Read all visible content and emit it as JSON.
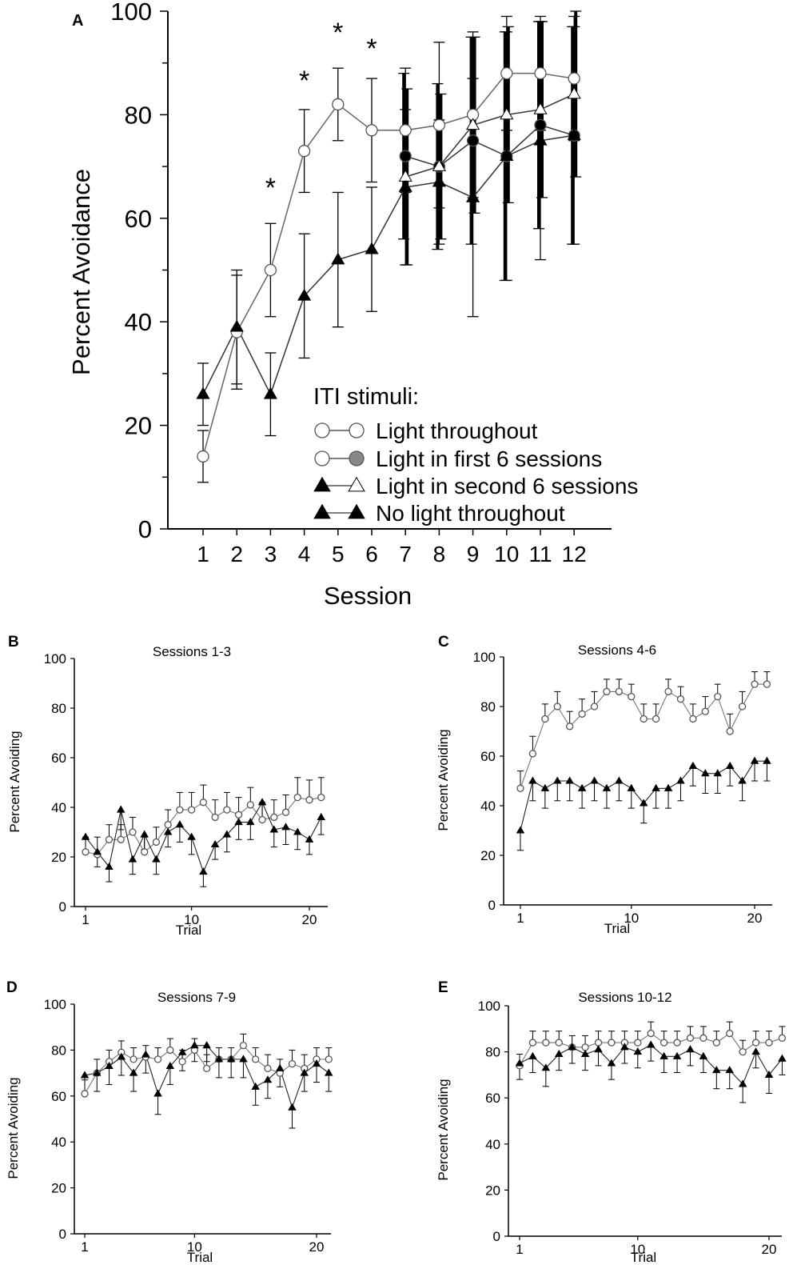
{
  "chart_data": [
    {
      "panel": "A",
      "type": "line",
      "title": "",
      "xlabel": "Session",
      "ylabel": "Percent Avoidance",
      "xlim": [
        0,
        13
      ],
      "ylim": [
        0,
        100
      ],
      "xticks": [
        "1",
        "2",
        "3",
        "4",
        "5",
        "6",
        "7",
        "8",
        "9",
        "10",
        "11",
        "12"
      ],
      "yticks": [
        "0",
        "20",
        "40",
        "60",
        "80",
        "100"
      ],
      "legend_title": "ITI stimuli:",
      "legend_position": "bottom-right",
      "significance_sessions": [
        3,
        4,
        5,
        6
      ],
      "significance_marker": "*",
      "series": [
        {
          "name": "Light throughout",
          "marker": "open-circle",
          "marker_late": "open-circle",
          "x": [
            1,
            2,
            3,
            4,
            5,
            6,
            7,
            8,
            9,
            10,
            11,
            12
          ],
          "values": [
            14,
            38,
            50,
            73,
            82,
            77,
            77,
            78,
            80,
            88,
            88,
            87
          ],
          "error": [
            5,
            11,
            9,
            8,
            7,
            10,
            12,
            16,
            16,
            11,
            11,
            12
          ]
        },
        {
          "name": "Light in first 6 sessions",
          "marker": "open-circle",
          "marker_late": "filled-circle",
          "x": [
            7,
            8,
            9,
            10,
            11,
            12
          ],
          "values": [
            72,
            70,
            75,
            72,
            78,
            76
          ],
          "error": [
            16,
            16,
            20,
            24,
            20,
            21
          ]
        },
        {
          "name": "Light in second 6 sessions",
          "marker": "filled-triangle",
          "marker_late": "open-triangle",
          "x": [
            7,
            8,
            9,
            10,
            11,
            12
          ],
          "values": [
            68,
            70,
            78,
            80,
            81,
            84
          ],
          "error": [
            17,
            14,
            17,
            17,
            17,
            16
          ]
        },
        {
          "name": "No light throughout",
          "marker": "filled-triangle",
          "marker_late": "filled-triangle",
          "x": [
            1,
            2,
            3,
            4,
            5,
            6,
            7,
            8,
            9,
            10,
            11,
            12
          ],
          "values": [
            26,
            39,
            26,
            45,
            52,
            54,
            66,
            67,
            64,
            72,
            75,
            76
          ],
          "error": [
            6,
            11,
            8,
            12,
            13,
            12,
            15,
            12,
            23,
            24,
            23,
            21
          ]
        }
      ]
    },
    {
      "panel": "B",
      "type": "line",
      "title": "Sessions 1-3",
      "xlabel": "Trial",
      "ylabel": "Percent Avoiding",
      "xlim": [
        0.5,
        21
      ],
      "ylim": [
        0,
        100
      ],
      "xticks": [
        "1",
        "10",
        "20"
      ],
      "yticks": [
        "0",
        "20",
        "40",
        "60",
        "80",
        "100"
      ],
      "series": [
        {
          "name": "Light",
          "marker": "open-circle",
          "x": [
            1,
            2,
            3,
            4,
            5,
            6,
            7,
            8,
            9,
            10,
            11,
            12,
            13,
            14,
            15,
            16,
            17,
            18,
            19,
            20,
            21
          ],
          "values": [
            22,
            21,
            27,
            27,
            30,
            22,
            26,
            33,
            39,
            39,
            42,
            36,
            39,
            37,
            41,
            35,
            36,
            38,
            44,
            43,
            44
          ],
          "error": [
            6,
            7,
            6,
            6,
            6,
            6,
            6,
            6,
            7,
            7,
            7,
            7,
            7,
            7,
            7,
            7,
            7,
            7,
            8,
            8,
            8
          ]
        },
        {
          "name": "No light",
          "marker": "filled-triangle",
          "x": [
            1,
            2,
            3,
            4,
            5,
            6,
            7,
            8,
            9,
            10,
            11,
            12,
            13,
            14,
            15,
            16,
            17,
            18,
            19,
            20,
            21
          ],
          "values": [
            28,
            22,
            16,
            39,
            19,
            29,
            19,
            30,
            33,
            28,
            14,
            25,
            29,
            34,
            34,
            42,
            31,
            32,
            30,
            27,
            36
          ],
          "error": [
            6,
            6,
            6,
            8,
            6,
            6,
            6,
            6,
            7,
            7,
            6,
            6,
            7,
            7,
            7,
            7,
            7,
            7,
            7,
            6,
            7
          ]
        }
      ]
    },
    {
      "panel": "C",
      "type": "line",
      "title": "Sessions 4-6",
      "xlabel": "Trial",
      "ylabel": "Percent Avoiding",
      "xlim": [
        0.5,
        21
      ],
      "ylim": [
        0,
        100
      ],
      "xticks": [
        "1",
        "10",
        "20"
      ],
      "yticks": [
        "0",
        "20",
        "40",
        "60",
        "80",
        "100"
      ],
      "series": [
        {
          "name": "Light",
          "marker": "open-circle",
          "x": [
            1,
            2,
            3,
            4,
            5,
            6,
            7,
            8,
            9,
            10,
            11,
            12,
            13,
            14,
            15,
            16,
            17,
            18,
            19,
            20,
            21
          ],
          "values": [
            47,
            61,
            75,
            80,
            72,
            77,
            80,
            86,
            86,
            84,
            75,
            75,
            86,
            83,
            75,
            78,
            84,
            70,
            80,
            89,
            89
          ],
          "error": [
            7,
            7,
            6,
            6,
            6,
            6,
            6,
            5,
            5,
            5,
            6,
            6,
            5,
            5,
            6,
            6,
            5,
            7,
            6,
            5,
            5
          ]
        },
        {
          "name": "No light",
          "marker": "filled-triangle",
          "x": [
            1,
            2,
            3,
            4,
            5,
            6,
            7,
            8,
            9,
            10,
            11,
            12,
            13,
            14,
            15,
            16,
            17,
            18,
            19,
            20,
            21
          ],
          "values": [
            30,
            50,
            47,
            50,
            50,
            47,
            50,
            47,
            50,
            47,
            41,
            47,
            47,
            50,
            56,
            53,
            53,
            56,
            50,
            58,
            58
          ],
          "error": [
            8,
            8,
            8,
            8,
            8,
            8,
            8,
            8,
            8,
            8,
            8,
            8,
            8,
            8,
            8,
            8,
            8,
            8,
            8,
            8,
            8
          ]
        }
      ]
    },
    {
      "panel": "D",
      "type": "line",
      "title": "Sessions 7-9",
      "xlabel": "Trial",
      "ylabel": "Percent Avoiding",
      "xlim": [
        0.5,
        21
      ],
      "ylim": [
        0,
        100
      ],
      "xticks": [
        "1",
        "10",
        "20"
      ],
      "yticks": [
        "0",
        "20",
        "40",
        "60",
        "80",
        "100"
      ],
      "series": [
        {
          "name": "Light",
          "marker": "open-circle",
          "x": [
            1,
            2,
            3,
            4,
            5,
            6,
            7,
            8,
            9,
            10,
            11,
            12,
            13,
            14,
            15,
            16,
            17,
            18,
            19,
            20,
            21
          ],
          "values": [
            61,
            70,
            75,
            79,
            76,
            77,
            76,
            80,
            75,
            80,
            72,
            76,
            76,
            82,
            76,
            72,
            70,
            74,
            72,
            76,
            76
          ],
          "error": [
            6,
            6,
            5,
            5,
            5,
            5,
            5,
            5,
            5,
            5,
            6,
            5,
            5,
            5,
            5,
            6,
            6,
            6,
            6,
            5,
            5
          ]
        },
        {
          "name": "No light",
          "marker": "filled-triangle",
          "x": [
            1,
            2,
            3,
            4,
            5,
            6,
            7,
            8,
            9,
            10,
            11,
            12,
            13,
            14,
            15,
            16,
            17,
            18,
            19,
            20,
            21
          ],
          "values": [
            69,
            70,
            73,
            77,
            70,
            78,
            61,
            73,
            79,
            82,
            82,
            76,
            76,
            76,
            64,
            67,
            72,
            55,
            70,
            74,
            70
          ],
          "error": [
            8,
            8,
            8,
            8,
            8,
            8,
            9,
            8,
            8,
            7,
            7,
            8,
            8,
            8,
            8,
            8,
            8,
            9,
            8,
            8,
            8
          ]
        }
      ]
    },
    {
      "panel": "E",
      "type": "line",
      "title": "Sessions 10-12",
      "xlabel": "Trial",
      "ylabel": "Percent Avoiding",
      "xlim": [
        0.5,
        21
      ],
      "ylim": [
        0,
        100
      ],
      "xticks": [
        "1",
        "10",
        "20"
      ],
      "yticks": [
        "0",
        "20",
        "40",
        "60",
        "80",
        "100"
      ],
      "series": [
        {
          "name": "Light",
          "marker": "open-circle",
          "x": [
            1,
            2,
            3,
            4,
            5,
            6,
            7,
            8,
            9,
            10,
            11,
            12,
            13,
            14,
            15,
            16,
            17,
            18,
            19,
            20,
            21
          ],
          "values": [
            74,
            84,
            84,
            84,
            82,
            82,
            84,
            84,
            84,
            84,
            88,
            84,
            84,
            86,
            86,
            84,
            88,
            80,
            84,
            84,
            86
          ],
          "error": [
            5,
            5,
            5,
            5,
            5,
            5,
            5,
            5,
            5,
            5,
            5,
            5,
            5,
            5,
            5,
            5,
            5,
            5,
            5,
            5,
            5
          ]
        },
        {
          "name": "No light",
          "marker": "filled-triangle",
          "x": [
            1,
            2,
            3,
            4,
            5,
            6,
            7,
            8,
            9,
            10,
            11,
            12,
            13,
            14,
            15,
            16,
            17,
            18,
            19,
            20,
            21
          ],
          "values": [
            75,
            78,
            73,
            79,
            82,
            79,
            81,
            75,
            82,
            80,
            83,
            78,
            78,
            81,
            78,
            72,
            72,
            66,
            80,
            70,
            77
          ],
          "error": [
            7,
            7,
            8,
            7,
            7,
            7,
            7,
            7,
            7,
            7,
            7,
            7,
            7,
            7,
            7,
            8,
            8,
            8,
            7,
            8,
            7
          ]
        }
      ]
    }
  ],
  "panel_letters": [
    "A",
    "B",
    "C",
    "D",
    "E"
  ]
}
